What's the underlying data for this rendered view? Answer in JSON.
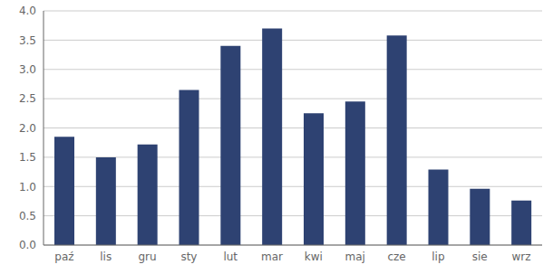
{
  "chart_data": {
    "type": "bar",
    "categories": [
      "paź",
      "lis",
      "gru",
      "sty",
      "lut",
      "mar",
      "kwi",
      "maj",
      "cze",
      "lip",
      "sie",
      "wrz"
    ],
    "values": [
      1.85,
      1.5,
      1.72,
      2.65,
      3.4,
      3.7,
      2.25,
      2.45,
      3.58,
      1.29,
      0.96,
      0.76
    ],
    "color": "#2E4272",
    "ylim": [
      0.0,
      4.0
    ],
    "yticks": [
      {
        "value": 0.0,
        "label": "0.0"
      },
      0.5,
      {
        "value": 1.0,
        "label": "1.0"
      },
      1.5,
      {
        "value": 2.0,
        "label": "2.0"
      },
      2.5,
      {
        "value": 3.0,
        "label": "3.0"
      },
      3.5,
      {
        "value": 4.0,
        "label": "4.0"
      }
    ],
    "grid": true
  }
}
